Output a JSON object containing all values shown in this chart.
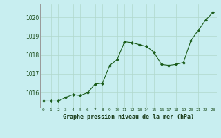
{
  "x": [
    0,
    1,
    2,
    3,
    4,
    5,
    6,
    7,
    8,
    9,
    10,
    11,
    12,
    13,
    14,
    15,
    16,
    17,
    18,
    19,
    20,
    21,
    22,
    23
  ],
  "y": [
    1015.55,
    1015.55,
    1015.55,
    1015.75,
    1015.9,
    1015.85,
    1016.0,
    1016.45,
    1016.5,
    1017.45,
    1017.75,
    1018.7,
    1018.65,
    1018.55,
    1018.45,
    1018.15,
    1017.5,
    1017.45,
    1017.5,
    1017.6,
    1018.75,
    1019.3,
    1019.85,
    1020.25
  ],
  "title": "Graphe pression niveau de la mer (hPa)",
  "ylim_min": 1015.2,
  "ylim_max": 1020.7,
  "yticks": [
    1016,
    1017,
    1018,
    1019,
    1020
  ],
  "xticks": [
    0,
    1,
    2,
    3,
    4,
    5,
    6,
    7,
    8,
    9,
    10,
    11,
    12,
    13,
    14,
    15,
    16,
    17,
    18,
    19,
    20,
    21,
    22,
    23
  ],
  "line_color": "#1a5c1a",
  "marker_color": "#1a5c1a",
  "bg_color": "#c8eef0",
  "grid_color": "#b0d8cc",
  "title_color": "#1a3c1a",
  "axis_label_color": "#1a4c1a"
}
